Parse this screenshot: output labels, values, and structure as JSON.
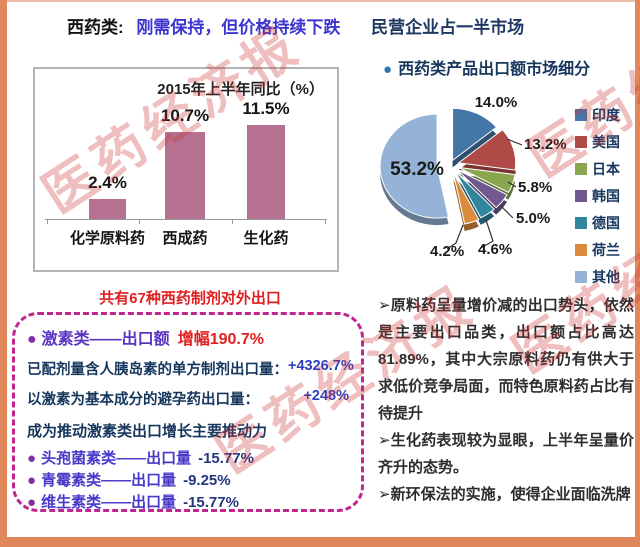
{
  "frame": {
    "color": "#e0885c"
  },
  "watermark": {
    "text": "医药经济报",
    "color": "rgba(206,52,52,0.32)"
  },
  "header": {
    "category": "西药类:",
    "trend": "刚需保持，但价格持续下跌",
    "market": "民营企业占一半市场"
  },
  "chart_data": [
    {
      "type": "bar",
      "title": "2015年上半年同比（%）",
      "categories": [
        "化学原料药",
        "西成药",
        "生化药"
      ],
      "values": [
        2.4,
        10.7,
        11.5
      ],
      "value_labels": [
        "2.4%",
        "10.7%",
        "11.5%"
      ],
      "ylim": [
        0,
        12
      ],
      "bar_color": "#b5718f",
      "grid": false,
      "legend": "none"
    },
    {
      "type": "pie",
      "title": "西药类产品出口额市场细分",
      "labels": [
        "印度",
        "美国",
        "日本",
        "韩国",
        "德国",
        "荷兰",
        "其他"
      ],
      "values": [
        14.0,
        13.2,
        5.8,
        5.0,
        4.6,
        4.2,
        53.2
      ],
      "display_labels": [
        "14.0%",
        "13.2%",
        "5.8%",
        "5.0%",
        "4.6%",
        "4.2%",
        "53.2%"
      ],
      "colors": [
        "#4576a8",
        "#b04a47",
        "#89a54e",
        "#71588f",
        "#31859c",
        "#db8b3d",
        "#95b3d7"
      ],
      "legend_position": "right",
      "style": "3d-exploded"
    }
  ],
  "formulations": {
    "heading": "共有67种西药制剂对外出口",
    "hormone": {
      "bullet": "●",
      "label": "激素类——出口额",
      "gain": "增幅190.7%"
    },
    "details": [
      {
        "label": "已配剂量含人胰岛素的单方制剂出口量：",
        "value": "+4326.7%"
      },
      {
        "label": "以激素为基本成分的避孕药出口量：",
        "value": "+248%"
      }
    ],
    "driver": "成为推动激素类出口增长主要推动力",
    "declines": [
      {
        "bullet": "●",
        "label": "头孢菌素类——出口量",
        "value": "-15.77%"
      },
      {
        "bullet": "●",
        "label": "青霉素类——出口量",
        "value": "-9.25%"
      },
      {
        "bullet": "●",
        "label": "维生素类——出口量",
        "value": "-15.77%"
      }
    ]
  },
  "insights": {
    "points": [
      "➢原料药呈量增价减的出口势头，依然是主要出口品类，出口额占比高达81.89%，其中大宗原料药仍有供大于求低价竞争局面，而特色原料药占比有待提升",
      "➢生化药表现较为显眼，上半年呈量价齐升的态势。",
      "➢新环保法的实施，使得企业面临洗牌"
    ]
  },
  "pie_bullet": "●"
}
